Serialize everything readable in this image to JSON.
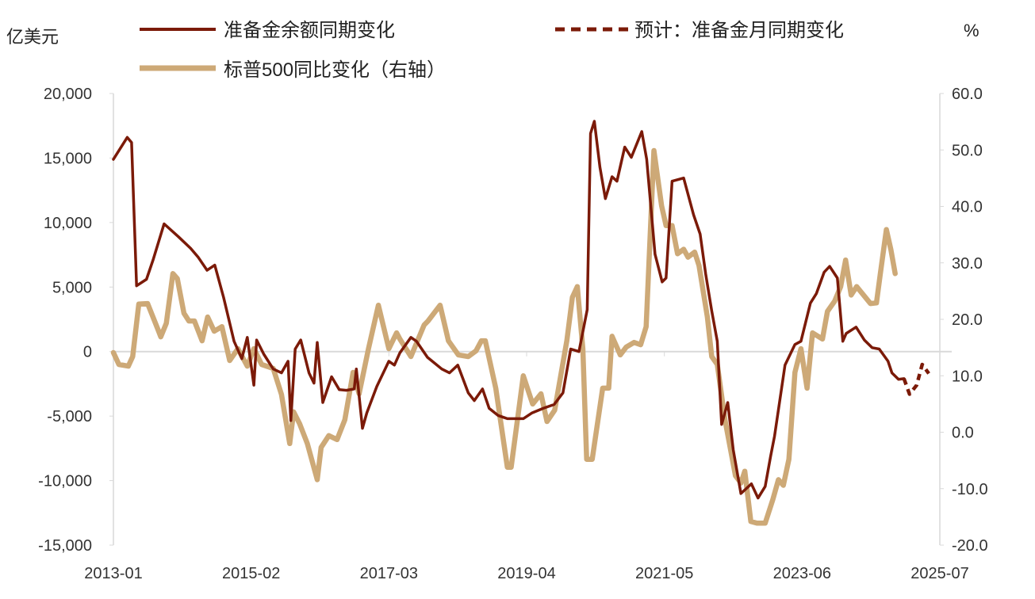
{
  "chart_data": {
    "type": "line",
    "left_axis": {
      "unit_label": "亿美元",
      "ylim": [
        -15000,
        20000
      ],
      "ticks": [
        20000,
        15000,
        10000,
        5000,
        0,
        -5000,
        -10000,
        -15000
      ],
      "tick_labels": [
        "20,000",
        "15,000",
        "10,000",
        "5,000",
        "0",
        "-5,000",
        "-10,000",
        "-15,000"
      ]
    },
    "right_axis": {
      "unit_label": "%",
      "ylim": [
        -20,
        60
      ],
      "ticks": [
        60,
        50,
        40,
        30,
        20,
        10,
        0,
        -10,
        -20
      ],
      "tick_labels": [
        "60.0",
        "50.0",
        "40.0",
        "30.0",
        "20.0",
        "10.0",
        "0.0",
        "-10.0",
        "-20.0"
      ]
    },
    "x_axis": {
      "start": "2013-01",
      "months_span": 150,
      "tick_labels": [
        "2013-01",
        "2015-02",
        "2017-03",
        "2019-04",
        "2021-05",
        "2023-06",
        "2025-07"
      ],
      "tick_month_offsets": [
        0,
        25,
        50,
        75,
        100,
        125,
        150
      ]
    },
    "grid": false,
    "legend": {
      "placement": "top"
    },
    "series": [
      {
        "name": "准备金余额同期变化",
        "axis": "left",
        "style": "solid",
        "color": "#7B1A08",
        "x_month_offset": [
          0,
          2.5,
          3.3,
          4.2,
          6,
          7.2,
          9.2,
          11.8,
          14,
          15.4,
          17,
          18.4,
          20,
          21.9,
          23.3,
          24.3,
          25.5,
          26,
          27.3,
          29,
          30.5,
          31.7,
          32.2,
          33,
          34,
          35.5,
          36.4,
          37,
          38,
          39.6,
          41,
          42.3,
          43.7,
          44.1,
          45.2,
          46,
          47.8,
          50,
          51,
          52,
          54,
          55,
          57,
          59.6,
          61,
          62.5,
          64.4,
          65.5,
          67,
          68.2,
          69.8,
          71.5,
          74.4,
          76,
          78,
          80,
          81.6,
          83,
          84.5,
          86,
          86.6,
          87.3,
          88.3,
          89.3,
          90.5,
          91.4,
          92.8,
          94,
          95.9,
          96.8,
          98.3,
          99.6,
          100.3,
          101.4,
          103.5,
          105.3,
          106.5,
          107.5,
          108.6,
          109.6,
          110.4,
          111.5,
          112.5,
          113.9,
          115.8,
          117,
          118.3,
          119.3,
          120,
          121.9,
          123.7,
          124.8,
          126.5,
          127.6,
          129,
          130,
          131.4,
          132.4,
          133,
          134.8,
          136.3,
          137.7,
          139,
          140.6,
          141.3,
          142.5,
          143.5
        ],
        "values": [
          14900,
          16600,
          16200,
          5100,
          5600,
          7100,
          9900,
          8900,
          8000,
          7300,
          6300,
          6700,
          4200,
          800,
          -550,
          1100,
          -2600,
          900,
          -200,
          -1350,
          -1650,
          -750,
          -5350,
          200,
          900,
          -1650,
          -2450,
          700,
          -3950,
          -1950,
          -2950,
          -3000,
          -2900,
          -1350,
          -5950,
          -4750,
          -2700,
          -750,
          -1050,
          -100,
          1100,
          800,
          -450,
          -1350,
          -1650,
          -1050,
          -3200,
          -3800,
          -2900,
          -4400,
          -4950,
          -5200,
          -5200,
          -4750,
          -4400,
          -4100,
          -3200,
          200,
          0,
          3250,
          16900,
          17850,
          14300,
          11850,
          13550,
          13200,
          15850,
          15050,
          17050,
          14900,
          7550,
          5400,
          5700,
          13200,
          13450,
          10600,
          9100,
          6000,
          3150,
          800,
          -5650,
          -3950,
          -7600,
          -11000,
          -10250,
          -11350,
          -10450,
          -8100,
          -6550,
          -1050,
          550,
          800,
          3750,
          4500,
          6150,
          6600,
          5700,
          800,
          1400,
          1900,
          900,
          300,
          200,
          -750,
          -1650,
          -2150,
          -2100
        ]
      },
      {
        "name": "预计：准备金月同期变化",
        "axis": "left",
        "style": "dashed",
        "color": "#7B1A08",
        "x_month_offset": [
          143.5,
          144.5,
          145.8,
          146.8,
          148
        ],
        "values": [
          -2100,
          -3300,
          -2600,
          -1000,
          -1700
        ]
      },
      {
        "name": "标普500同比变化（右轴）",
        "axis": "right",
        "style": "solid-thick",
        "color": "#CDA977",
        "x_month_offset": [
          0,
          1,
          2.7,
          3.5,
          4.6,
          6.2,
          8.2,
          8.6,
          9.6,
          10.8,
          11.6,
          12.8,
          13.7,
          14.7,
          16.1,
          17.1,
          18.3,
          19.7,
          21.1,
          22.6,
          24.3,
          25.5,
          26.9,
          29,
          30.5,
          32,
          32.7,
          33.8,
          35.2,
          37,
          37.7,
          39.1,
          40.6,
          42,
          43.5,
          44.6,
          46.3,
          48.1,
          50,
          51.4,
          52,
          54,
          56.4,
          57.1,
          59.3,
          60.8,
          62.6,
          64.4,
          65.8,
          66.8,
          67.5,
          69.4,
          71.5,
          72.2,
          74.4,
          76.1,
          77.6,
          78.7,
          80.1,
          82.3,
          83.3,
          84.2,
          85.2,
          85.9,
          86.9,
          88.8,
          89.9,
          90.5,
          92,
          93.1,
          94.5,
          95.7,
          96.7,
          98.1,
          99.5,
          100.3,
          101.4,
          102.4,
          103.5,
          104.3,
          105.5,
          106.3,
          107.8,
          108.6,
          109.6,
          111,
          112.9,
          113.9,
          114.6,
          115.7,
          116.8,
          118.3,
          119.7,
          120.7,
          121.6,
          122.6,
          123.7,
          124.8,
          125.9,
          126.9,
          128.7,
          129.6,
          130.9,
          132,
          132.9,
          133.9,
          134.9,
          137.4,
          138.5,
          139.2,
          140.3,
          141.1,
          141.9
        ],
        "values": [
          14.1,
          12,
          11.7,
          13.4,
          22.7,
          22.8,
          17.9,
          16.9,
          19.3,
          28.1,
          27.2,
          21.1,
          19.7,
          19.7,
          16.2,
          20.4,
          17.9,
          18.7,
          12.7,
          14.8,
          11.7,
          14.8,
          12,
          11.3,
          6.7,
          -2,
          3.6,
          1.5,
          -2,
          -8.4,
          -2.7,
          -0.6,
          -1.3,
          2.2,
          10.6,
          6.8,
          14.8,
          22.5,
          14.8,
          17.6,
          16.5,
          13.4,
          19,
          19.7,
          22.5,
          16.2,
          13.7,
          13.4,
          14.4,
          16.2,
          16.2,
          7.8,
          -6.2,
          -6.2,
          10,
          5,
          6.8,
          1.9,
          3.9,
          16.2,
          23.9,
          25.8,
          14.8,
          -4.8,
          -4.8,
          7.8,
          7.8,
          17,
          13.7,
          15.1,
          15.9,
          15.5,
          18.7,
          49.9,
          40.1,
          36.6,
          36.6,
          31.6,
          32.4,
          31,
          31.9,
          29.5,
          20.4,
          13.4,
          12,
          2.2,
          -7.7,
          -9,
          -6.9,
          -15.8,
          -16.1,
          -16.1,
          -11.9,
          -8.4,
          -9.4,
          -4.8,
          10.6,
          14.8,
          7.8,
          17.6,
          16.5,
          21.4,
          23.2,
          25.8,
          30.5,
          24.3,
          25.8,
          22.8,
          22.9,
          28.1,
          35.9,
          32.4,
          28.1
        ]
      }
    ]
  }
}
